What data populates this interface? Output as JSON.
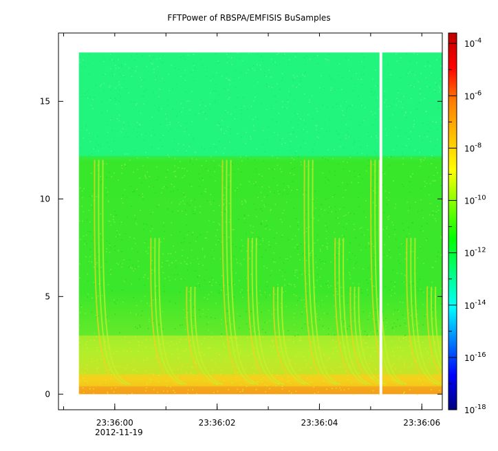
{
  "chart_data": {
    "type": "heatmap",
    "title": "FFTPower of RBSPA/EMFISIS  BuSamples",
    "xlabel": "",
    "ylabel": "",
    "x_ticks": [
      "23:36:00",
      "23:36:02",
      "23:36:04",
      "23:36:06"
    ],
    "x_date_label": "2012-11-19",
    "x_range": [
      "23:35:58.9",
      "23:36:06.4"
    ],
    "y_range": [
      -0.8,
      18.5
    ],
    "y_ticks": [
      0,
      5,
      10,
      15
    ],
    "data_x_range": [
      "23:35:59.3",
      "23:36:06.4"
    ],
    "data_y_range": [
      0,
      17.5
    ],
    "data_gap_at": "23:36:05.2",
    "colorbar": {
      "scale": "log",
      "range": [
        "1e-18",
        "1e-3.6"
      ],
      "tick_mantissa": "10",
      "tick_exponents": [
        "-4",
        "-6",
        "-8",
        "-10",
        "-12",
        "-14",
        "-16",
        "-18"
      ],
      "colormap": [
        "#00007f",
        "#0000ff",
        "#007fff",
        "#00ffff",
        "#00ff7f",
        "#00ff00",
        "#7fff00",
        "#ffff00",
        "#ffbf00",
        "#ff7f00",
        "#ff0000",
        "#bf0000"
      ]
    },
    "bands": [
      {
        "y_from": 12.2,
        "y_to": 17.5,
        "level": "~1e-12",
        "color": "#21f57d"
      },
      {
        "y_from": 3.0,
        "y_to": 12.2,
        "level": "~1e-10",
        "color": "#39e82a"
      },
      {
        "y_from": 1.0,
        "y_to": 3.0,
        "level": "~1e-9",
        "color": "#a9ee2c"
      },
      {
        "y_from": 0.4,
        "y_to": 1.0,
        "level": "~1e-8",
        "color": "#f2d21c"
      },
      {
        "y_from": 0.0,
        "y_to": 0.4,
        "level": "~1e-7",
        "color": "#f4a11c"
      }
    ],
    "grid": false,
    "legend": "colorbar-right"
  }
}
